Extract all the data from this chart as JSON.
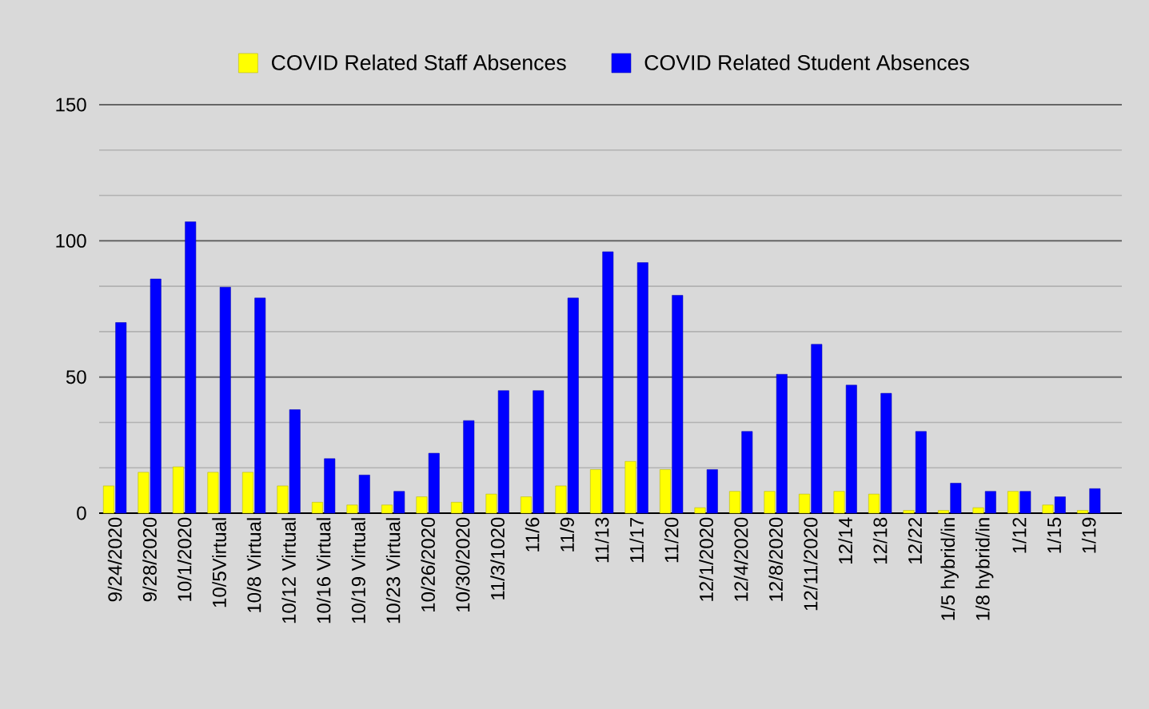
{
  "chart_data": {
    "type": "bar",
    "categories": [
      "9/24/2020",
      "9/28/2020",
      "10/1/2020",
      "10/5Virtual",
      "10/8 Virtual",
      "10/12 Virtual",
      "10/16 Virtual",
      "10/19 Virtual",
      "10/23 Virtual",
      "10/26/2020",
      "10/30/2020",
      "11/3/1020",
      "11/6",
      "11/9",
      "11/13",
      "11/17",
      "11/20",
      "12/1/2020",
      "12/4/2020",
      "12/8/2020",
      "12/11/2020",
      "12/14",
      "12/18",
      "12/22",
      "1/5 hybrid/in",
      "1/8 hybrid/in",
      "1/12",
      "1/15",
      "1/19"
    ],
    "series": [
      {
        "name": "COVID Related Staff Absences",
        "color": "#ffff00",
        "values": [
          10,
          15,
          17,
          15,
          15,
          10,
          4,
          3,
          3,
          6,
          4,
          7,
          6,
          10,
          16,
          19,
          16,
          2,
          8,
          8,
          7,
          8,
          7,
          1,
          1,
          2,
          8,
          3,
          1
        ]
      },
      {
        "name": "COVID Related Student Absences",
        "color": "#0000ff",
        "values": [
          70,
          86,
          107,
          83,
          79,
          38,
          20,
          14,
          8,
          22,
          34,
          45,
          45,
          79,
          96,
          92,
          80,
          16,
          30,
          51,
          62,
          47,
          44,
          30,
          11,
          8,
          8,
          6,
          9
        ]
      }
    ],
    "ylim": [
      0,
      150
    ],
    "yticks": [
      0,
      50,
      100,
      150
    ],
    "grid": "y",
    "legend": "top"
  }
}
